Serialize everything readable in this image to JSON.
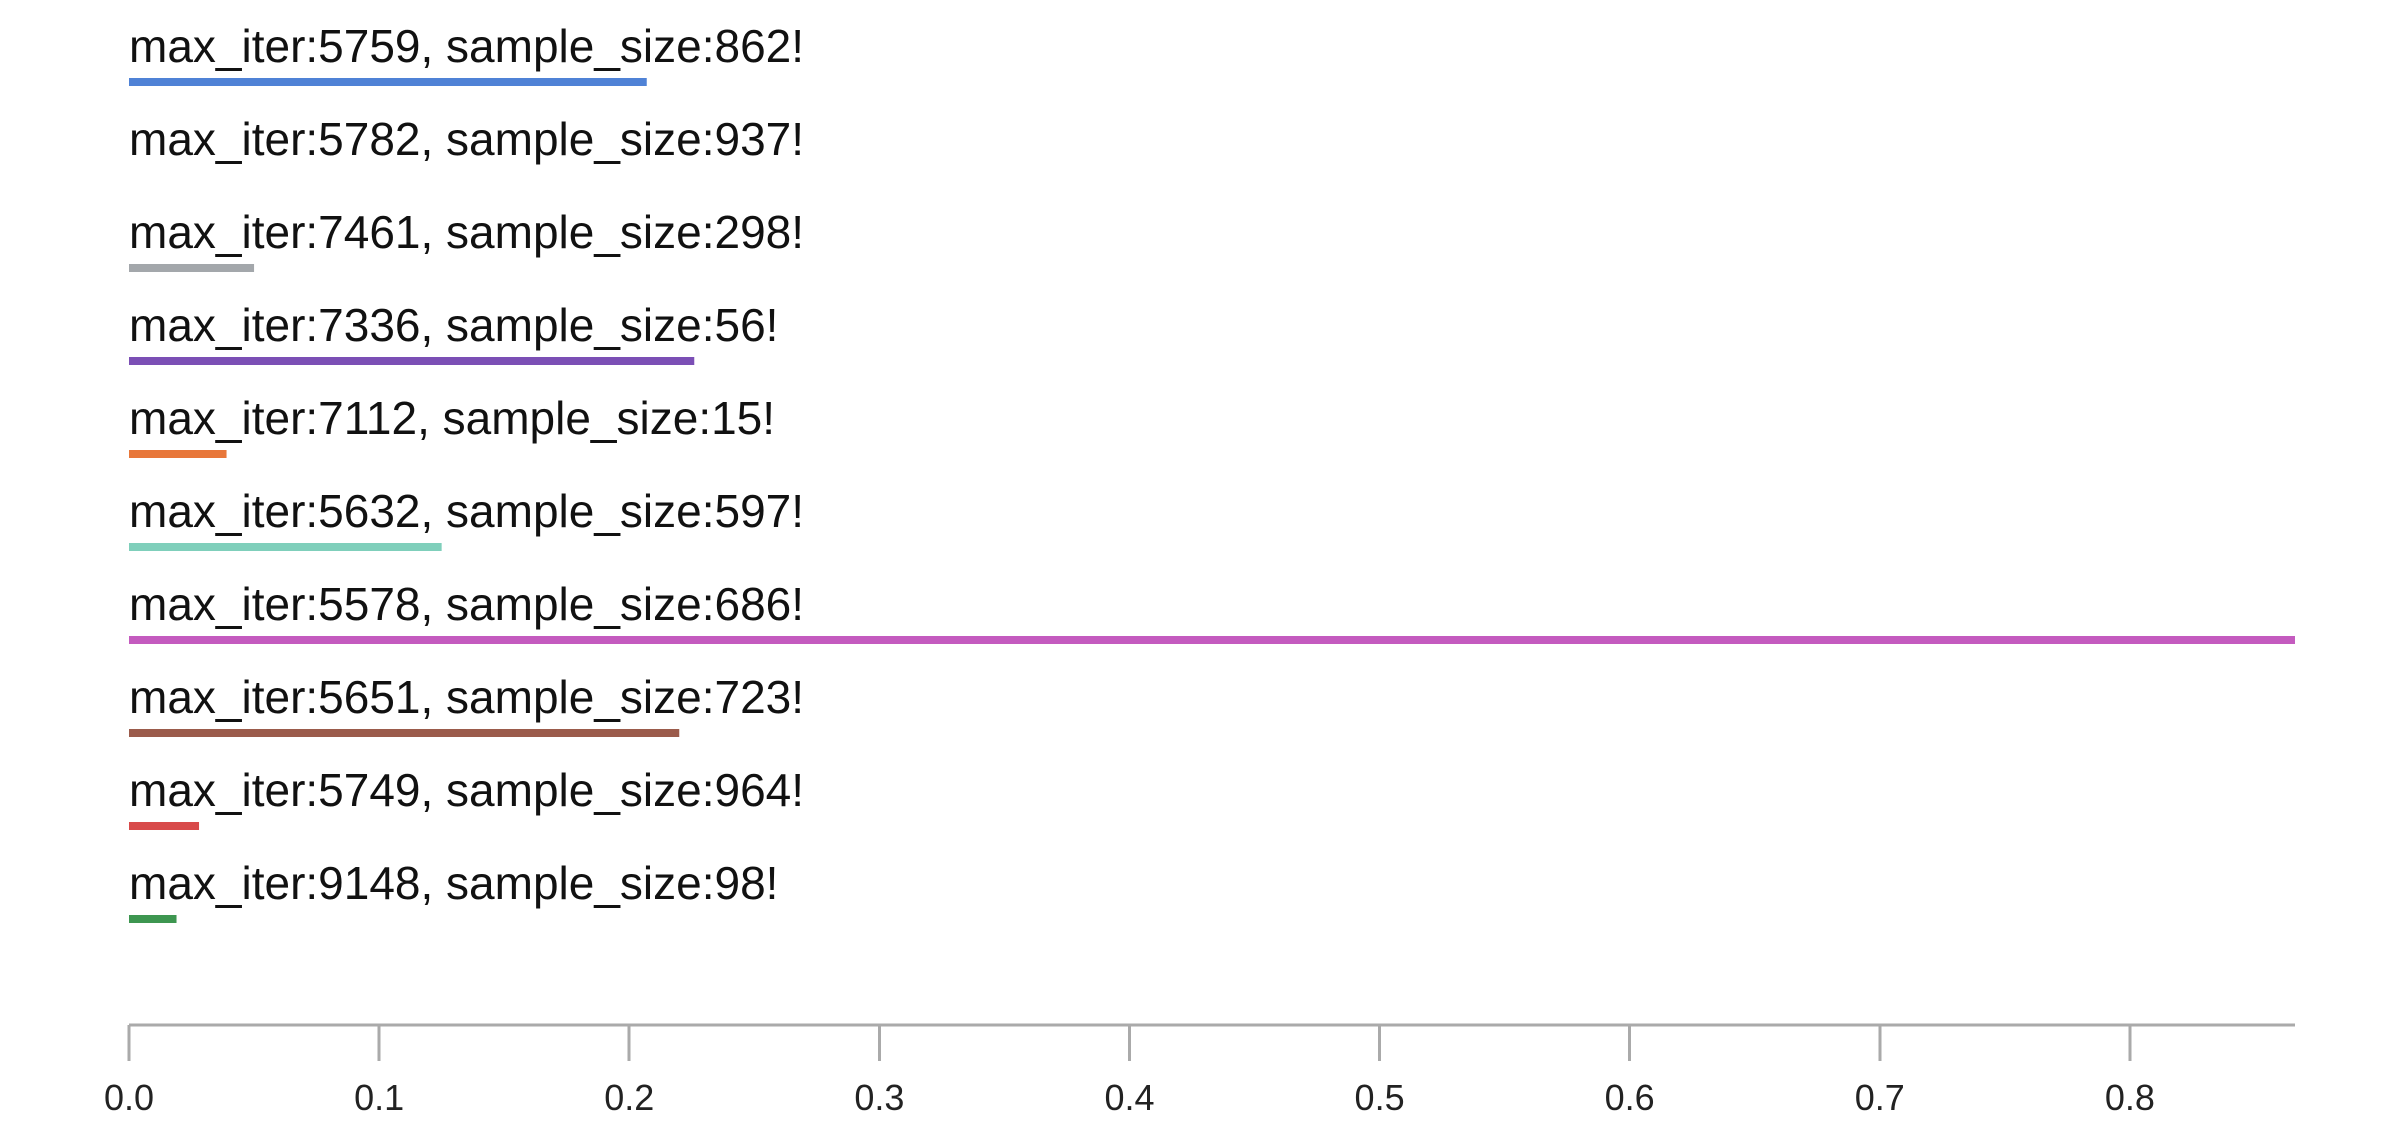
{
  "chart_data": {
    "type": "bar",
    "orientation": "horizontal",
    "categories": [
      "max_iter:5759, sample_size:862!",
      "max_iter:5782, sample_size:937!",
      "max_iter:7461, sample_size:298!",
      "max_iter:7336, sample_size:56!",
      "max_iter:7112, sample_size:15!",
      "max_iter:5632, sample_size:597!",
      "max_iter:5578, sample_size:686!",
      "max_iter:5651, sample_size:723!",
      "max_iter:5749, sample_size:964!",
      "max_iter:9148, sample_size:98!"
    ],
    "values": [
      0.207,
      0.0,
      0.05,
      0.226,
      0.039,
      0.125,
      0.866,
      0.22,
      0.028,
      0.019
    ],
    "colors": [
      "#4f82d6",
      "#f2c94c",
      "#a3a7ab",
      "#7b4fb5",
      "#e8773a",
      "#7fcfbb",
      "#c45bbf",
      "#9b5b4b",
      "#d84a4a",
      "#3d9650"
    ],
    "xlim": [
      0,
      0.866
    ],
    "xticks": [
      "0.0",
      "0.1",
      "0.2",
      "0.3",
      "0.4",
      "0.5",
      "0.6",
      "0.7",
      "0.8"
    ],
    "title": "",
    "xlabel": "",
    "ylabel": "",
    "grid": false,
    "legend": "none"
  }
}
